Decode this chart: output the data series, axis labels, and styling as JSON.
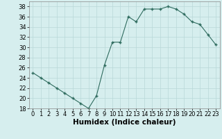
{
  "x": [
    0,
    1,
    2,
    3,
    4,
    5,
    6,
    7,
    8,
    9,
    10,
    11,
    12,
    13,
    14,
    15,
    16,
    17,
    18,
    19,
    20,
    21,
    22,
    23
  ],
  "y": [
    25,
    24,
    23,
    22,
    21,
    20,
    19,
    18,
    20.5,
    26.5,
    31,
    31,
    36,
    35,
    37.5,
    37.5,
    37.5,
    38,
    37.5,
    36.5,
    35,
    34.5,
    32.5,
    30.5
  ],
  "xlabel": "Humidex (Indice chaleur)",
  "ylim": [
    18,
    39
  ],
  "xlim": [
    -0.5,
    23.5
  ],
  "yticks": [
    18,
    20,
    22,
    24,
    26,
    28,
    30,
    32,
    34,
    36,
    38
  ],
  "xticks": [
    0,
    1,
    2,
    3,
    4,
    5,
    6,
    7,
    8,
    9,
    10,
    11,
    12,
    13,
    14,
    15,
    16,
    17,
    18,
    19,
    20,
    21,
    22,
    23
  ],
  "xtick_labels": [
    "0",
    "1",
    "2",
    "3",
    "4",
    "5",
    "6",
    "7",
    "8",
    "9",
    "10",
    "11",
    "12",
    "13",
    "14",
    "15",
    "16",
    "17",
    "18",
    "19",
    "20",
    "21",
    "22",
    "23"
  ],
  "line_color": "#2e6b5e",
  "marker_color": "#2e6b5e",
  "bg_color": "#d6eeee",
  "grid_color": "#b8d8d8",
  "tick_label_fontsize": 6,
  "xlabel_fontsize": 7.5
}
